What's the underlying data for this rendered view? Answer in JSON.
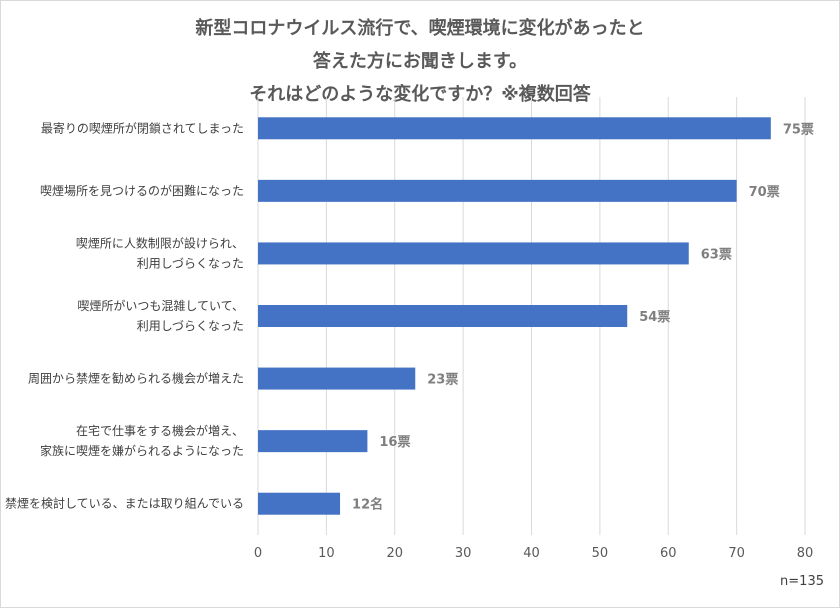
{
  "title_lines": [
    "新型コロナウイルス流行で、喫煙環境に変化があったと",
    "答えた方にお聞きします。",
    "それはどのような変化ですか？※複数回答"
  ],
  "note": "n=135",
  "colors": {
    "bar": "#4472c4",
    "grid": "#d9d9d9",
    "label": "#7f7f7f"
  },
  "chart_data": {
    "type": "bar",
    "orientation": "horizontal",
    "categories": [
      [
        "最寄りの喫煙所が閉鎖されてしまった"
      ],
      [
        "喫煙場所を見つけるのが困難になった"
      ],
      [
        "喫煙所に人数制限が設けられ、",
        "利用しづらくなった"
      ],
      [
        "喫煙所がいつも混雑していて、",
        "利用しづらくなった"
      ],
      [
        "周囲から禁煙を勧められる機会が増えた"
      ],
      [
        "在宅で仕事をする機会が増え、",
        "家族に喫煙を嫌がられるようになった"
      ],
      [
        "禁煙を検討している、または取り組んでいる"
      ]
    ],
    "values": [
      75,
      70,
      63,
      54,
      23,
      16,
      12
    ],
    "data_labels": [
      "75票",
      "70票",
      "63票",
      "54票",
      "23票",
      "16票",
      "12名"
    ],
    "xlim": [
      0,
      80
    ],
    "xticks": [
      0,
      10,
      20,
      30,
      40,
      50,
      60,
      70,
      80
    ],
    "grid": true,
    "xlabel": "",
    "ylabel": ""
  }
}
